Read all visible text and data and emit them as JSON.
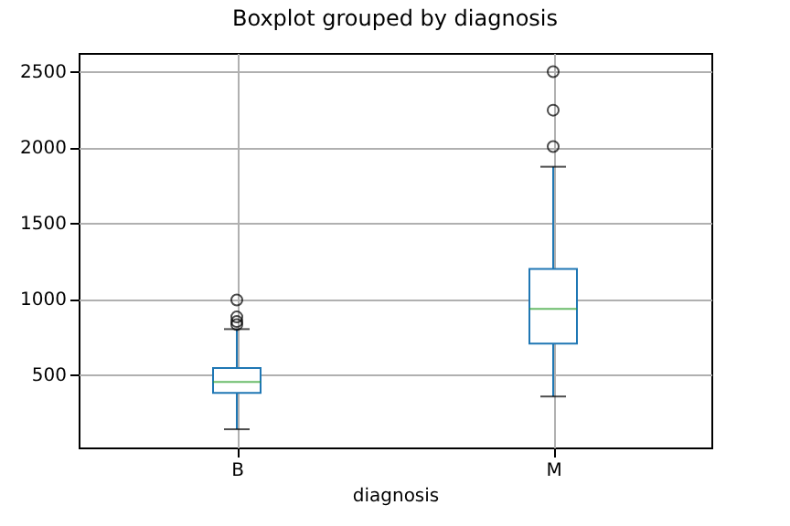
{
  "chart_data": {
    "type": "box",
    "title": "Boxplot grouped by diagnosis",
    "xlabel": "diagnosis",
    "categories": [
      "B",
      "M"
    ],
    "series": [
      {
        "color": "#1f77b4",
        "boxes": [
          {
            "low": 140,
            "q1": 380,
            "median": 452,
            "q3": 544,
            "high": 800,
            "outliers": [
              992,
              880,
              850,
              830
            ]
          },
          {
            "low": 356,
            "q1": 705,
            "median": 933,
            "q3": 1197,
            "high": 1870,
            "outliers": [
              2003,
              2243,
              2497
            ]
          }
        ]
      }
    ],
    "ylim": [
      20,
      2620
    ],
    "yticks": [
      500,
      1000,
      1500,
      2000,
      2500
    ],
    "grid": true
  }
}
